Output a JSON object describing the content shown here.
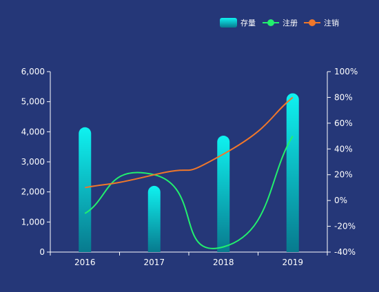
{
  "chart_data": {
    "type": "bar",
    "categories": [
      "2016",
      "2017",
      "2018",
      "2019"
    ],
    "series": [
      {
        "name": "存量",
        "type": "bar",
        "axis": "left",
        "values": [
          4150,
          2200,
          3870,
          5280
        ]
      },
      {
        "name": "注册",
        "type": "line",
        "axis": "right",
        "values": [
          -10,
          20,
          -36,
          50
        ]
      },
      {
        "name": "注销",
        "type": "line",
        "axis": "right",
        "values": [
          10,
          20,
          36,
          80
        ]
      }
    ],
    "y_left": {
      "min": 0,
      "max": 6000,
      "ticks": [
        "0",
        "1,000",
        "2,000",
        "3,000",
        "4,000",
        "5,000",
        "6,000"
      ]
    },
    "y_right": {
      "min": -40,
      "max": 100,
      "ticks": [
        "-40%",
        "-20%",
        "0%",
        "20%",
        "40%",
        "60%",
        "80%",
        "100%"
      ]
    },
    "legend_position": "top-right",
    "grid": false,
    "colors": {
      "background": "#253778",
      "bar_top": "#0ff2f0",
      "bar_bottom": "#087a8e",
      "register_line": "#22f06e",
      "cancel_line": "#f0772a",
      "axis": "#ffffff"
    }
  }
}
